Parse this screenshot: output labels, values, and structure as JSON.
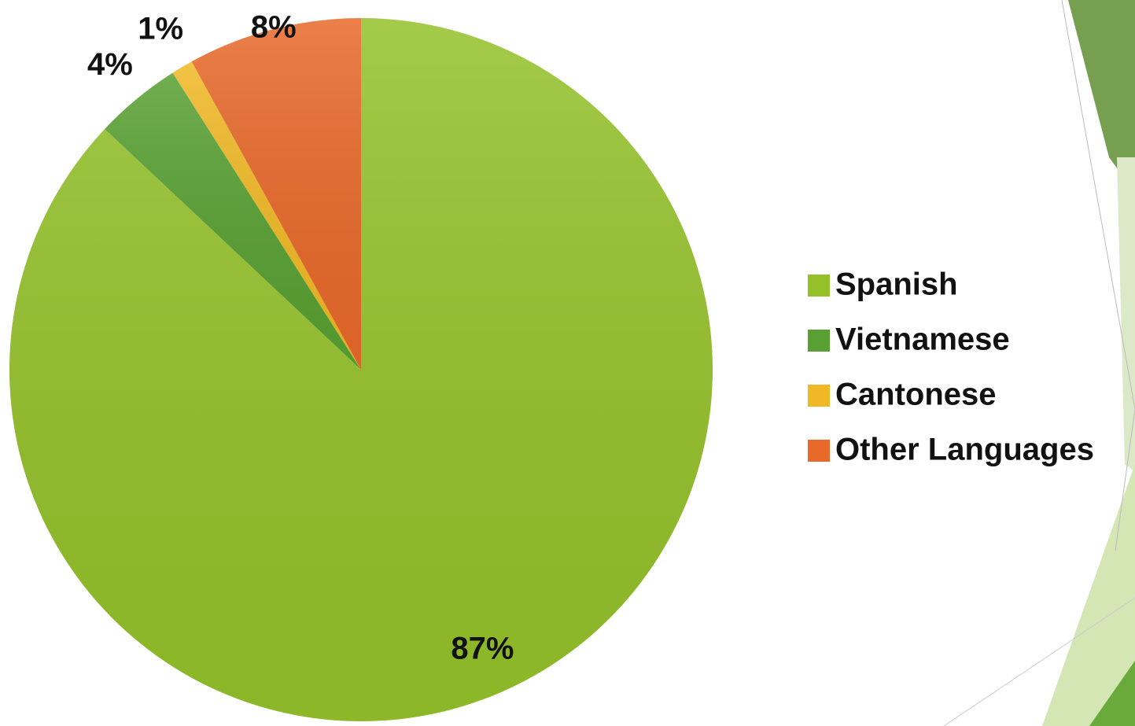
{
  "chart_data": {
    "type": "pie",
    "categories": [
      "Spanish",
      "Vietnamese",
      "Cantonese",
      "Other Languages"
    ],
    "values": [
      87,
      4,
      1,
      8
    ],
    "value_labels": [
      "87%",
      "4%",
      "1%",
      "8%"
    ],
    "colors": [
      "#94c12a",
      "#58a032",
      "#f0b824",
      "#e8692a"
    ],
    "legend": "right"
  }
}
